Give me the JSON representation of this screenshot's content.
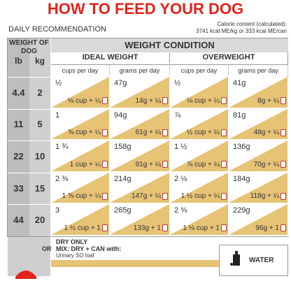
{
  "header": {
    "title": "HOW TO FEED YOUR DOG",
    "subtitle": "DAILY RECOMMENDATION",
    "calorie_label": "Calorie content (calculated):",
    "calorie_value": "3741 kcal ME/kg or 333 kcal ME/can"
  },
  "table": {
    "weight_header": "WEIGHT OF DOG",
    "unit_lb": "lb",
    "unit_kg": "kg",
    "condition": "WEIGHT CONDITION",
    "groups": [
      "IDEAL WEIGHT",
      "OVERWEIGHT"
    ],
    "columns": [
      "cups per day",
      "grams per day",
      "cups per day",
      "grams per day"
    ],
    "rows": [
      {
        "lb": 4.4,
        "kg": 2,
        "cells": [
          [
            "½",
            "⅛ cup + ¼"
          ],
          [
            "47g",
            "14g + ¼"
          ],
          [
            "½",
            "⅛ cup + ¼"
          ],
          [
            "41g",
            "8g + ¼"
          ]
        ]
      },
      {
        "lb": 11,
        "kg": 5,
        "cells": [
          [
            "1",
            "⅝ cup + ¼"
          ],
          [
            "94g",
            "61g + ¼"
          ],
          [
            "⅞",
            "½ cup + ¼"
          ],
          [
            "81g",
            "48g + ¼"
          ]
        ]
      },
      {
        "lb": 22,
        "kg": 10,
        "cells": [
          [
            "1 ¾",
            "1 cup + ¼"
          ],
          [
            "158g",
            "91g + ¼"
          ],
          [
            "1 ½",
            "⅞ cup + ¼"
          ],
          [
            "136g",
            "70g + ¼"
          ]
        ]
      },
      {
        "lb": 33,
        "kg": 15,
        "cells": [
          [
            "2 ⅜",
            "1 ⅝ cup + ¼"
          ],
          [
            "214g",
            "147g + ¼"
          ],
          [
            "2 ⅛",
            "1 ½ cup + ¼"
          ],
          [
            "184g",
            "118g + ¼"
          ]
        ]
      },
      {
        "lb": 44,
        "kg": 20,
        "cells": [
          [
            "3",
            "1 ½ cup + 1"
          ],
          [
            "265g",
            "133g + 1"
          ],
          [
            "2 ⅝",
            "1 ⅛ cup + 1"
          ],
          [
            "229g",
            "96g + 1"
          ]
        ]
      }
    ]
  },
  "footer": {
    "dry": "DRY ONLY",
    "or": "OR",
    "mix": "MIX: DRY + CAN with:",
    "product": "Urinary SO loaf",
    "water": "WATER"
  }
}
